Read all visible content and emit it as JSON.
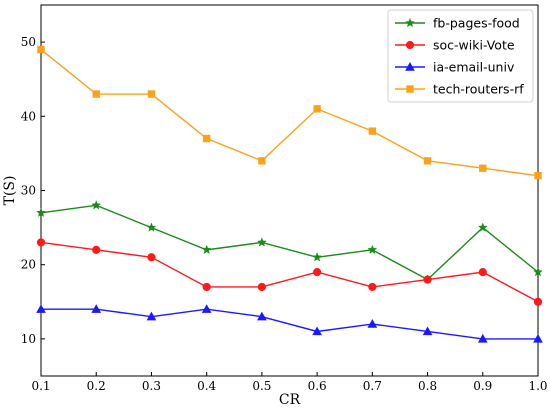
{
  "chart_data": {
    "type": "line",
    "title": "",
    "xlabel": "CR",
    "ylabel": "T(S)",
    "x": [
      0.1,
      0.2,
      0.3,
      0.4,
      0.5,
      0.6,
      0.7,
      0.8,
      0.9,
      1.0
    ],
    "x_tick_labels": [
      "0.1",
      "0.2",
      "0.3",
      "0.4",
      "0.5",
      "0.6",
      "0.7",
      "0.8",
      "0.9",
      "1.0"
    ],
    "y_ticks": [
      10,
      20,
      30,
      40,
      50
    ],
    "y_tick_labels": [
      "10",
      "20",
      "30",
      "40",
      "50"
    ],
    "xlim": [
      0.1,
      1.0
    ],
    "ylim": [
      5,
      55
    ],
    "grid": false,
    "legend_position": "top-right",
    "series": [
      {
        "name": "fb-pages-food",
        "color": "#1a8c1a",
        "marker": "star",
        "values": [
          27,
          28,
          25,
          22,
          23,
          21,
          22,
          18,
          25,
          19
        ]
      },
      {
        "name": "soc-wiki-Vote",
        "color": "#ff1a1a",
        "marker": "circle",
        "values": [
          23,
          22,
          21,
          17,
          17,
          19,
          17,
          18,
          19,
          15
        ]
      },
      {
        "name": "ia-email-univ",
        "color": "#1a1aff",
        "marker": "triangle",
        "values": [
          14,
          14,
          13,
          14,
          13,
          11,
          12,
          11,
          10,
          10
        ]
      },
      {
        "name": "tech-routers-rf",
        "color": "#ffa01a",
        "marker": "square",
        "values": [
          49,
          43,
          43,
          37,
          34,
          41,
          38,
          34,
          33,
          32
        ]
      }
    ]
  }
}
